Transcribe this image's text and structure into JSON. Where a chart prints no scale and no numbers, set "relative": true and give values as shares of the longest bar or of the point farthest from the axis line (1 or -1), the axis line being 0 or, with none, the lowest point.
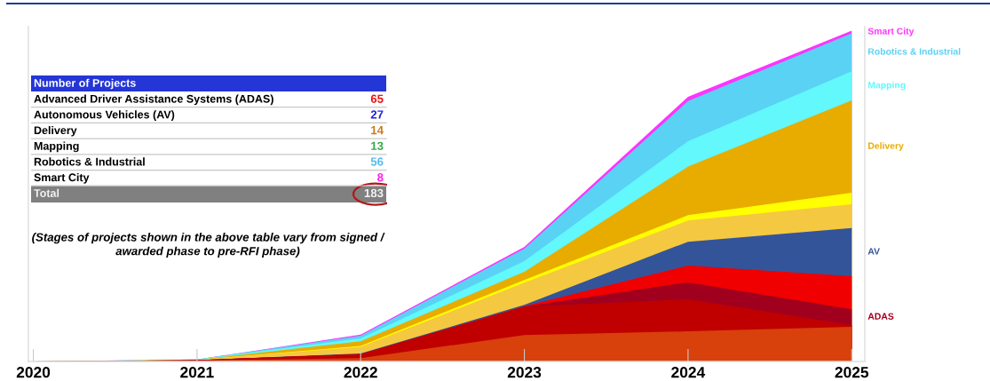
{
  "chart_data": [
    {
      "type": "area",
      "stacked": true,
      "relative": true,
      "x": [
        2020,
        2021,
        2022,
        2023,
        2024,
        2025
      ],
      "xlim": [
        2019.97,
        2025.08
      ],
      "xticks": [
        2020,
        2021,
        2022,
        2023,
        2024,
        2025
      ],
      "series": [
        {
          "color": "#d8400c",
          "values": [
            0,
            0.003,
            0.01,
            0.08,
            0.091,
            0.105
          ]
        },
        {
          "color": "#c00000",
          "values": [
            0,
            0.001,
            0.012,
            0.086,
            0.097,
            0.005
          ]
        },
        {
          "name": "ADAS",
          "color": "#a0001e",
          "values": [
            0,
            0,
            0,
            0,
            0.051,
            0.048
          ]
        },
        {
          "color": "#f00000",
          "values": [
            0,
            0,
            0,
            0.001,
            0.051,
            0.1
          ]
        },
        {
          "name": "AV",
          "color": "#34549a",
          "values": [
            0,
            0,
            0.002,
            0.004,
            0.072,
            0.145
          ]
        },
        {
          "color": "#f5c842",
          "values": [
            0,
            0.001,
            0.02,
            0.067,
            0.064,
            0.072
          ]
        },
        {
          "color": "#ffff00",
          "values": [
            0,
            0,
            0.003,
            0.008,
            0.016,
            0.035
          ]
        },
        {
          "name": "Delivery",
          "color": "#e8ac00",
          "values": [
            0,
            0,
            0.014,
            0.025,
            0.147,
            0.279
          ]
        },
        {
          "name": "Mapping",
          "color": "#62f8fc",
          "values": [
            0,
            0.001,
            0.009,
            0.032,
            0.077,
            0.088
          ]
        },
        {
          "name": "Robotics & Industrial",
          "color": "#5ad2f4",
          "values": [
            0,
            0,
            0.008,
            0.038,
            0.121,
            0.115
          ]
        },
        {
          "name": "Smart City",
          "color": "#ff33ff",
          "values": [
            0,
            0,
            0.003,
            0.005,
            0.013,
            0.008
          ]
        }
      ]
    },
    {
      "type": "other",
      "title": "Number of Projects",
      "data_labels": true,
      "categories": [
        "Advanced Driver Assistance Systems (ADAS)",
        "Autonomous Vehicles (AV)",
        "Delivery",
        "Mapping",
        "Robotics & Industrial",
        "Smart City",
        "Total"
      ],
      "values": [
        65,
        27,
        14,
        13,
        56,
        8,
        183
      ],
      "colors": [
        "#ee1111",
        "#2222dd",
        "#cc7a1a",
        "#33aa44",
        "#55bbee",
        "#ff22ee",
        "#808080"
      ],
      "annotations": [
        "(Stages of projects shown in the above table vary from signed /\nawarded phase to pre-RFI phase)"
      ]
    }
  ]
}
